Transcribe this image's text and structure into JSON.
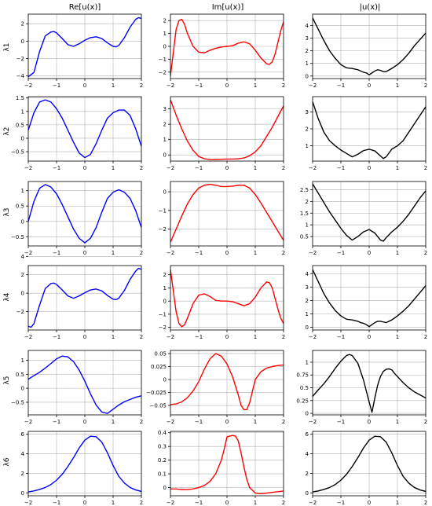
{
  "columns": [
    {
      "title": "Re[u(x)]",
      "color": "#0000ff"
    },
    {
      "title": "Im[u(x)]",
      "color": "#ff0000"
    },
    {
      "title": "|u(x)|",
      "color": "#000000"
    }
  ],
  "rows": [
    {
      "ylabel": "λ1"
    },
    {
      "ylabel": "λ2"
    },
    {
      "ylabel": "λ3"
    },
    {
      "ylabel": "λ4"
    },
    {
      "ylabel": "λ5"
    },
    {
      "ylabel": "λ6"
    }
  ],
  "chart_data": [
    {
      "type": "line",
      "row": 1,
      "col": 1,
      "color": "#0000ff",
      "xlim": [
        -2,
        2
      ],
      "ylim": [
        -4.3,
        3.1
      ],
      "xticks": [
        -2,
        -1,
        0,
        1,
        2
      ],
      "yticks": [
        -4,
        -2,
        0,
        2
      ],
      "grid": true,
      "x": [
        -2,
        -1.8,
        -1.6,
        -1.4,
        -1.2,
        -1.1,
        -1.0,
        -0.8,
        -0.6,
        -0.4,
        -0.2,
        0,
        0.2,
        0.4,
        0.6,
        0.8,
        1.0,
        1.1,
        1.2,
        1.4,
        1.6,
        1.8,
        1.9,
        2.0
      ],
      "y": [
        -4.1,
        -3.6,
        -1.2,
        0.6,
        1.05,
        1.1,
        0.95,
        0.3,
        -0.4,
        -0.6,
        -0.3,
        0.1,
        0.4,
        0.5,
        0.3,
        -0.2,
        -0.6,
        -0.65,
        -0.5,
        0.4,
        1.6,
        2.5,
        2.7,
        2.6
      ]
    },
    {
      "type": "line",
      "row": 1,
      "col": 2,
      "color": "#ff0000",
      "xlim": [
        -2,
        2
      ],
      "ylim": [
        -2.5,
        2.5
      ],
      "xticks": [
        -2,
        -1,
        0,
        1,
        2
      ],
      "yticks": [
        -2,
        -1,
        0,
        1,
        2
      ],
      "grid": true,
      "x": [
        -2,
        -1.9,
        -1.8,
        -1.7,
        -1.6,
        -1.5,
        -1.4,
        -1.2,
        -1.0,
        -0.8,
        -0.6,
        -0.4,
        -0.2,
        0,
        0.2,
        0.4,
        0.6,
        0.8,
        1.0,
        1.2,
        1.4,
        1.5,
        1.6,
        1.7,
        1.8,
        1.9,
        2.0
      ],
      "y": [
        -2.3,
        -0.5,
        1.3,
        2.0,
        2.1,
        1.7,
        1.0,
        0.0,
        -0.45,
        -0.5,
        -0.3,
        -0.15,
        -0.05,
        0.0,
        0.05,
        0.25,
        0.35,
        0.2,
        -0.3,
        -0.9,
        -1.35,
        -1.4,
        -1.2,
        -0.6,
        0.3,
        1.2,
        1.9
      ]
    },
    {
      "type": "line",
      "row": 1,
      "col": 3,
      "color": "#000000",
      "xlim": [
        -2,
        2
      ],
      "ylim": [
        -0.2,
        4.9
      ],
      "xticks": [
        -2,
        -1,
        0,
        1,
        2
      ],
      "yticks": [
        0,
        1,
        2,
        3,
        4
      ],
      "grid": true,
      "x": [
        -2,
        -1.8,
        -1.6,
        -1.4,
        -1.2,
        -1.0,
        -0.8,
        -0.6,
        -0.4,
        -0.3,
        -0.2,
        -0.1,
        0,
        0.1,
        0.2,
        0.3,
        0.4,
        0.5,
        0.6,
        0.8,
        1.0,
        1.2,
        1.4,
        1.6,
        1.8,
        2.0
      ],
      "y": [
        4.6,
        3.7,
        2.8,
        2.0,
        1.4,
        0.9,
        0.65,
        0.6,
        0.5,
        0.4,
        0.3,
        0.25,
        0.1,
        0.25,
        0.4,
        0.5,
        0.45,
        0.35,
        0.35,
        0.6,
        0.9,
        1.3,
        1.8,
        2.4,
        2.9,
        3.4
      ]
    },
    {
      "type": "line",
      "row": 2,
      "col": 1,
      "color": "#0000ff",
      "xlim": [
        -2,
        2
      ],
      "ylim": [
        -0.85,
        1.55
      ],
      "xticks": [
        -2,
        -1,
        0,
        1,
        2
      ],
      "yticks": [
        -0.5,
        0.0,
        0.5,
        1.0,
        1.5
      ],
      "grid": true,
      "x": [
        -2,
        -1.8,
        -1.6,
        -1.4,
        -1.2,
        -1.0,
        -0.8,
        -0.6,
        -0.4,
        -0.2,
        0,
        0.2,
        0.4,
        0.6,
        0.8,
        1.0,
        1.2,
        1.4,
        1.6,
        1.8,
        2.0
      ],
      "y": [
        0.3,
        0.95,
        1.35,
        1.43,
        1.35,
        1.1,
        0.75,
        0.3,
        -0.15,
        -0.55,
        -0.72,
        -0.6,
        -0.2,
        0.3,
        0.75,
        0.95,
        1.05,
        1.05,
        0.85,
        0.35,
        -0.3
      ]
    },
    {
      "type": "line",
      "row": 2,
      "col": 2,
      "color": "#ff0000",
      "xlim": [
        -2,
        2
      ],
      "ylim": [
        -0.4,
        3.8
      ],
      "xticks": [
        -2,
        -1,
        0,
        1,
        2
      ],
      "yticks": [
        0,
        1,
        2,
        3
      ],
      "grid": true,
      "x": [
        -2,
        -1.8,
        -1.6,
        -1.4,
        -1.2,
        -1.0,
        -0.8,
        -0.6,
        -0.4,
        -0.2,
        0,
        0.2,
        0.4,
        0.6,
        0.8,
        1.0,
        1.2,
        1.4,
        1.6,
        1.8,
        2.0
      ],
      "y": [
        3.6,
        2.6,
        1.7,
        0.9,
        0.3,
        -0.1,
        -0.25,
        -0.3,
        -0.3,
        -0.28,
        -0.27,
        -0.27,
        -0.25,
        -0.2,
        -0.05,
        0.2,
        0.6,
        1.2,
        1.8,
        2.5,
        3.2
      ]
    },
    {
      "type": "line",
      "row": 2,
      "col": 3,
      "color": "#000000",
      "xlim": [
        -2,
        2
      ],
      "ylim": [
        0.1,
        3.9
      ],
      "xticks": [
        -2,
        -1,
        0,
        1,
        2
      ],
      "yticks": [
        1,
        2,
        3
      ],
      "grid": true,
      "x": [
        -2,
        -1.8,
        -1.6,
        -1.4,
        -1.2,
        -1.0,
        -0.8,
        -0.6,
        -0.4,
        -0.2,
        0,
        0.2,
        0.4,
        0.5,
        0.6,
        0.8,
        1.0,
        1.2,
        1.4,
        1.6,
        1.8,
        2.0
      ],
      "y": [
        3.6,
        2.6,
        1.8,
        1.3,
        1.0,
        0.75,
        0.55,
        0.35,
        0.5,
        0.72,
        0.8,
        0.7,
        0.4,
        0.25,
        0.35,
        0.8,
        1.0,
        1.3,
        1.8,
        2.3,
        2.8,
        3.3
      ]
    },
    {
      "type": "line",
      "row": 3,
      "col": 1,
      "color": "#0000ff",
      "xlim": [
        -2,
        2
      ],
      "ylim": [
        -0.8,
        1.3
      ],
      "xticks": [
        -2,
        -1,
        0,
        1,
        2
      ],
      "yticks": [
        -0.5,
        0.0,
        0.5,
        1.0
      ],
      "grid": true,
      "x": [
        -2,
        -1.8,
        -1.6,
        -1.4,
        -1.2,
        -1.0,
        -0.8,
        -0.6,
        -0.4,
        -0.2,
        0,
        0.2,
        0.4,
        0.6,
        0.8,
        1.0,
        1.2,
        1.4,
        1.6,
        1.8,
        2.0
      ],
      "y": [
        0.0,
        0.65,
        1.08,
        1.2,
        1.12,
        0.9,
        0.55,
        0.15,
        -0.25,
        -0.55,
        -0.7,
        -0.55,
        -0.2,
        0.3,
        0.75,
        0.95,
        1.03,
        0.95,
        0.75,
        0.35,
        -0.2
      ]
    },
    {
      "type": "line",
      "row": 3,
      "col": 2,
      "color": "#ff0000",
      "xlim": [
        -2,
        2
      ],
      "ylim": [
        -2.9,
        0.55
      ],
      "xticks": [
        -2,
        -1,
        0,
        1,
        2
      ],
      "yticks": [
        -2,
        -1,
        0
      ],
      "grid": true,
      "x": [
        -2,
        -1.8,
        -1.6,
        -1.4,
        -1.2,
        -1.0,
        -0.8,
        -0.6,
        -0.4,
        -0.2,
        0,
        0.2,
        0.4,
        0.6,
        0.8,
        1.0,
        1.2,
        1.4,
        1.6,
        1.8,
        2.0
      ],
      "y": [
        -2.7,
        -2.0,
        -1.3,
        -0.65,
        -0.15,
        0.2,
        0.35,
        0.4,
        0.35,
        0.28,
        0.28,
        0.3,
        0.35,
        0.35,
        0.2,
        -0.15,
        -0.6,
        -1.1,
        -1.6,
        -2.1,
        -2.6
      ]
    },
    {
      "type": "line",
      "row": 3,
      "col": 3,
      "color": "#000000",
      "xlim": [
        -2,
        2
      ],
      "ylim": [
        0.1,
        2.85
      ],
      "xticks": [
        -2,
        -1,
        0,
        1,
        2
      ],
      "yticks": [
        0.5,
        1.0,
        1.5,
        2.0,
        2.5
      ],
      "grid": true,
      "x": [
        -2,
        -1.8,
        -1.6,
        -1.4,
        -1.2,
        -1.0,
        -0.8,
        -0.6,
        -0.4,
        -0.2,
        0,
        0.2,
        0.4,
        0.5,
        0.6,
        0.8,
        1.0,
        1.2,
        1.4,
        1.6,
        1.8,
        2.0
      ],
      "y": [
        2.75,
        2.35,
        1.95,
        1.55,
        1.2,
        0.85,
        0.55,
        0.35,
        0.5,
        0.7,
        0.8,
        0.65,
        0.35,
        0.3,
        0.45,
        0.7,
        0.9,
        1.15,
        1.45,
        1.8,
        2.15,
        2.45
      ]
    },
    {
      "type": "line",
      "row": 4,
      "col": 1,
      "color": "#0000ff",
      "xlim": [
        -2,
        2
      ],
      "ylim": [
        -4.0,
        3.0
      ],
      "xticks": [
        -2,
        -1,
        0,
        1,
        2
      ],
      "yticks": [
        -2,
        0,
        2,
        4
      ],
      "grid": true,
      "x": [
        -2,
        -1.9,
        -1.8,
        -1.6,
        -1.4,
        -1.2,
        -1.1,
        -1.0,
        -0.8,
        -0.6,
        -0.4,
        -0.2,
        0,
        0.2,
        0.4,
        0.6,
        0.8,
        1.0,
        1.1,
        1.2,
        1.4,
        1.6,
        1.8,
        1.9,
        2.0
      ],
      "y": [
        -3.6,
        -3.7,
        -3.3,
        -1.3,
        0.5,
        1.05,
        1.1,
        0.95,
        0.35,
        -0.3,
        -0.55,
        -0.3,
        0.05,
        0.35,
        0.45,
        0.25,
        -0.25,
        -0.65,
        -0.7,
        -0.55,
        0.3,
        1.5,
        2.4,
        2.7,
        2.6
      ]
    },
    {
      "type": "line",
      "row": 4,
      "col": 2,
      "color": "#ff0000",
      "xlim": [
        -2,
        2
      ],
      "ylim": [
        -2.2,
        2.7
      ],
      "xticks": [
        -2,
        -1,
        0,
        1,
        2
      ],
      "yticks": [
        -2,
        -1,
        0,
        1,
        2
      ],
      "grid": true,
      "x": [
        -2,
        -1.9,
        -1.8,
        -1.7,
        -1.6,
        -1.5,
        -1.4,
        -1.2,
        -1.0,
        -0.8,
        -0.6,
        -0.4,
        -0.2,
        0,
        0.2,
        0.4,
        0.6,
        0.8,
        1.0,
        1.2,
        1.4,
        1.5,
        1.6,
        1.7,
        1.8,
        1.9,
        2.0
      ],
      "y": [
        2.4,
        0.8,
        -0.8,
        -1.7,
        -1.95,
        -1.8,
        -1.3,
        -0.2,
        0.45,
        0.55,
        0.35,
        0.05,
        0.0,
        0.0,
        -0.05,
        -0.2,
        -0.35,
        -0.2,
        0.3,
        1.0,
        1.45,
        1.4,
        1.0,
        0.2,
        -0.6,
        -1.3,
        -1.7
      ]
    },
    {
      "type": "line",
      "row": 4,
      "col": 3,
      "color": "#000000",
      "xlim": [
        -2,
        2
      ],
      "ylim": [
        -0.2,
        4.6
      ],
      "xticks": [
        -2,
        -1,
        0,
        1,
        2
      ],
      "yticks": [
        0,
        1,
        2,
        3,
        4
      ],
      "grid": true,
      "x": [
        -2,
        -1.8,
        -1.6,
        -1.4,
        -1.2,
        -1.0,
        -0.8,
        -0.6,
        -0.4,
        -0.3,
        -0.2,
        -0.1,
        0,
        0.1,
        0.2,
        0.3,
        0.4,
        0.5,
        0.6,
        0.8,
        1.0,
        1.2,
        1.4,
        1.6,
        1.8,
        2.0
      ],
      "y": [
        4.3,
        3.4,
        2.5,
        1.8,
        1.25,
        0.85,
        0.6,
        0.55,
        0.45,
        0.35,
        0.3,
        0.2,
        0.05,
        0.2,
        0.35,
        0.45,
        0.45,
        0.4,
        0.35,
        0.55,
        0.85,
        1.2,
        1.6,
        2.1,
        2.6,
        3.1
      ]
    },
    {
      "type": "line",
      "row": 5,
      "col": 1,
      "color": "#0000ff",
      "xlim": [
        -2,
        2
      ],
      "ylim": [
        -0.95,
        1.35
      ],
      "xticks": [
        -2,
        -1,
        0,
        1,
        2
      ],
      "yticks": [
        -0.5,
        0.0,
        0.5,
        1.0
      ],
      "grid": true,
      "x": [
        -2,
        -1.8,
        -1.6,
        -1.4,
        -1.2,
        -1.0,
        -0.8,
        -0.6,
        -0.4,
        -0.2,
        0,
        0.2,
        0.4,
        0.6,
        0.8,
        1.0,
        1.2,
        1.4,
        1.6,
        1.8,
        2.0
      ],
      "y": [
        0.32,
        0.45,
        0.57,
        0.72,
        0.88,
        1.05,
        1.15,
        1.12,
        0.95,
        0.65,
        0.25,
        -0.2,
        -0.6,
        -0.85,
        -0.9,
        -0.75,
        -0.6,
        -0.48,
        -0.4,
        -0.32,
        -0.27
      ]
    },
    {
      "type": "line",
      "row": 5,
      "col": 2,
      "color": "#ff0000",
      "xlim": [
        -2,
        2
      ],
      "ylim": [
        -0.068,
        0.056
      ],
      "xticks": [
        -2,
        -1,
        0,
        1,
        2
      ],
      "yticks": [
        -0.05,
        -0.025,
        0.0,
        0.025,
        0.05
      ],
      "grid": true,
      "x": [
        -2,
        -1.8,
        -1.6,
        -1.4,
        -1.2,
        -1.0,
        -0.8,
        -0.6,
        -0.4,
        -0.2,
        0,
        0.2,
        0.4,
        0.5,
        0.6,
        0.7,
        0.8,
        1.0,
        1.2,
        1.4,
        1.6,
        1.8,
        2.0
      ],
      "y": [
        -0.048,
        -0.047,
        -0.043,
        -0.035,
        -0.022,
        -0.004,
        0.02,
        0.04,
        0.05,
        0.045,
        0.03,
        0.005,
        -0.03,
        -0.05,
        -0.058,
        -0.058,
        -0.045,
        0.0,
        0.015,
        0.022,
        0.025,
        0.027,
        0.028
      ]
    },
    {
      "type": "line",
      "row": 5,
      "col": 3,
      "color": "#000000",
      "xlim": [
        -2,
        2
      ],
      "ylim": [
        -0.03,
        1.23
      ],
      "xticks": [
        -2,
        -1,
        0,
        1,
        2
      ],
      "yticks": [
        0.0,
        0.25,
        0.5,
        0.75,
        1.0
      ],
      "grid": true,
      "x": [
        -2,
        -1.8,
        -1.6,
        -1.4,
        -1.2,
        -1.0,
        -0.8,
        -0.7,
        -0.6,
        -0.4,
        -0.2,
        0,
        0.1,
        0.2,
        0.3,
        0.4,
        0.5,
        0.6,
        0.7,
        0.8,
        0.9,
        1.0,
        1.2,
        1.4,
        1.6,
        1.8,
        2.0
      ],
      "y": [
        0.33,
        0.46,
        0.58,
        0.72,
        0.88,
        1.02,
        1.13,
        1.15,
        1.13,
        0.98,
        0.65,
        0.22,
        0.02,
        0.3,
        0.55,
        0.72,
        0.82,
        0.86,
        0.87,
        0.85,
        0.78,
        0.72,
        0.6,
        0.5,
        0.42,
        0.36,
        0.3
      ]
    },
    {
      "type": "line",
      "row": 6,
      "col": 1,
      "color": "#0000ff",
      "xlim": [
        -2,
        2
      ],
      "ylim": [
        -0.3,
        6.3
      ],
      "xticks": [
        -2,
        -1,
        0,
        1,
        2
      ],
      "yticks": [
        0,
        2,
        4,
        6
      ],
      "grid": true,
      "x": [
        -2,
        -1.8,
        -1.6,
        -1.4,
        -1.2,
        -1.0,
        -0.8,
        -0.6,
        -0.4,
        -0.2,
        0,
        0.2,
        0.4,
        0.6,
        0.8,
        1.0,
        1.2,
        1.4,
        1.6,
        1.8,
        2.0
      ],
      "y": [
        0.1,
        0.2,
        0.35,
        0.55,
        0.85,
        1.3,
        1.9,
        2.7,
        3.6,
        4.6,
        5.4,
        5.8,
        5.75,
        5.2,
        4.1,
        2.8,
        1.7,
        1.0,
        0.55,
        0.3,
        0.15
      ]
    },
    {
      "type": "line",
      "row": 6,
      "col": 2,
      "color": "#ff0000",
      "xlim": [
        -2,
        2
      ],
      "ylim": [
        -0.06,
        0.41
      ],
      "xticks": [
        -2,
        -1,
        0,
        1,
        2
      ],
      "yticks": [
        0.0,
        0.1,
        0.2,
        0.3,
        0.4
      ],
      "grid": true,
      "x": [
        -2,
        -1.8,
        -1.6,
        -1.4,
        -1.2,
        -1.0,
        -0.8,
        -0.6,
        -0.4,
        -0.2,
        -0.1,
        0,
        0.1,
        0.2,
        0.3,
        0.4,
        0.5,
        0.6,
        0.7,
        0.8,
        1.0,
        1.2,
        1.4,
        1.6,
        1.8,
        2.0
      ],
      "y": [
        -0.01,
        -0.01,
        -0.015,
        -0.015,
        -0.01,
        0.0,
        0.015,
        0.045,
        0.1,
        0.2,
        0.28,
        0.37,
        0.375,
        0.38,
        0.375,
        0.34,
        0.25,
        0.15,
        0.06,
        0.0,
        -0.04,
        -0.045,
        -0.04,
        -0.035,
        -0.03,
        -0.025
      ]
    },
    {
      "type": "line",
      "row": 6,
      "col": 3,
      "color": "#000000",
      "xlim": [
        -2,
        2
      ],
      "ylim": [
        -0.3,
        6.3
      ],
      "xticks": [
        -2,
        -1,
        0,
        1,
        2
      ],
      "yticks": [
        0,
        2,
        4,
        6
      ],
      "grid": true,
      "x": [
        -2,
        -1.8,
        -1.6,
        -1.4,
        -1.2,
        -1.0,
        -0.8,
        -0.6,
        -0.4,
        -0.2,
        0,
        0.2,
        0.4,
        0.6,
        0.8,
        1.0,
        1.2,
        1.4,
        1.6,
        1.8,
        2.0
      ],
      "y": [
        0.1,
        0.2,
        0.35,
        0.55,
        0.85,
        1.3,
        1.9,
        2.7,
        3.6,
        4.6,
        5.4,
        5.8,
        5.75,
        5.2,
        4.1,
        2.8,
        1.7,
        1.0,
        0.55,
        0.3,
        0.15
      ]
    }
  ]
}
